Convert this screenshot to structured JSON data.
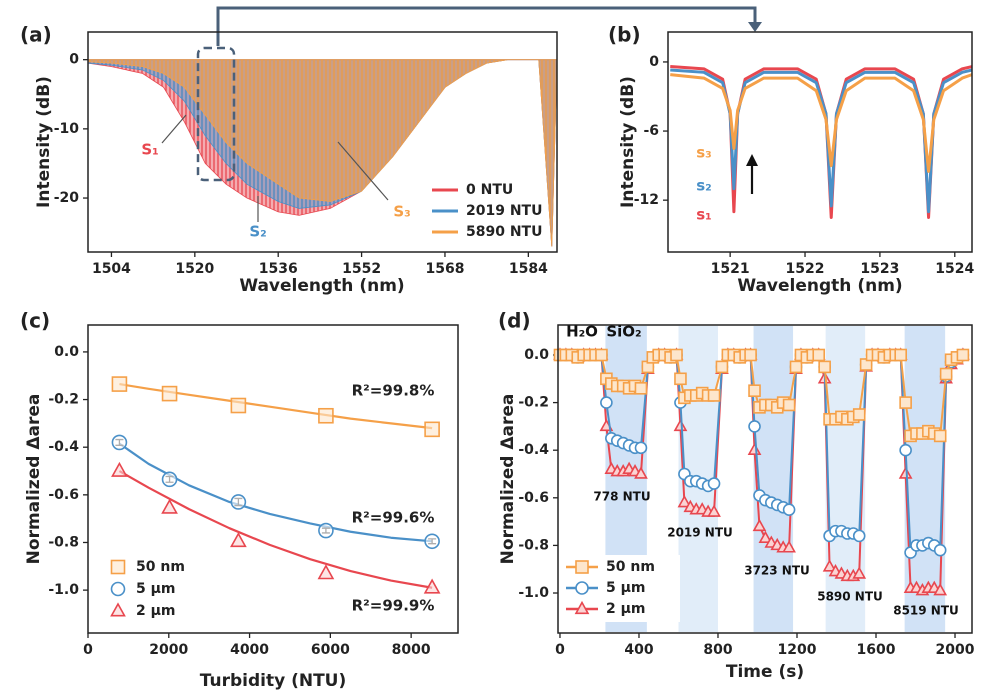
{
  "chart_data": [
    {
      "type": "area",
      "label": "(a)",
      "xlabel": "Wavelength (nm)",
      "ylabel": "Intensity (dB)",
      "xlim": [
        1499.5,
        1589.5
      ],
      "xticks": [
        1504,
        1520,
        1536,
        1552,
        1568,
        1584
      ],
      "ylim": [
        -27.8,
        4
      ],
      "yticks": [
        0,
        -10,
        -20
      ],
      "legend": "lower right",
      "x": [
        1499.5,
        1504,
        1510,
        1514,
        1518,
        1522,
        1526,
        1530,
        1536,
        1540,
        1546,
        1552,
        1558,
        1564,
        1568,
        1572,
        1576,
        1580,
        1586,
        1588.5,
        1589.5
      ],
      "series": [
        {
          "name": "0 NTU",
          "color": "#e8474f",
          "values": [
            -0.5,
            -1,
            -2,
            -4,
            -9,
            -15,
            -18,
            -20,
            -22,
            -22.5,
            -21.5,
            -19,
            -14,
            -8,
            -4,
            -2,
            -0.5,
            0,
            0,
            -27,
            0
          ]
        },
        {
          "name": "2019 NTU",
          "color": "#4a90c8",
          "values": [
            -0.5,
            -0.8,
            -1.5,
            -3,
            -6,
            -11,
            -15,
            -18,
            -20.5,
            -21.5,
            -21,
            -19,
            -14,
            -8,
            -4,
            -2,
            -0.5,
            0,
            0,
            -27,
            0
          ]
        },
        {
          "name": "5890 NTU",
          "color": "#f5a048",
          "values": [
            -0.3,
            -0.5,
            -1,
            -2,
            -4,
            -8,
            -12,
            -15,
            -18,
            -20,
            -20.5,
            -19,
            -14,
            -8,
            -4,
            -2,
            -0.5,
            0,
            0,
            -27,
            0
          ]
        }
      ],
      "annotations": [
        {
          "text": "S₁",
          "color": "#e8474f"
        },
        {
          "text": "S₂",
          "color": "#4a90c8"
        },
        {
          "text": "S₃",
          "color": "#f5a048"
        }
      ]
    },
    {
      "type": "line",
      "label": "(b)",
      "xlabel": "Wavelength (nm)",
      "ylabel": "Intensity (dB)",
      "xlim": [
        1520.17,
        1524.23
      ],
      "xticks": [
        1521,
        1522,
        1523,
        1524
      ],
      "ylim": [
        -16.5,
        2.6
      ],
      "yticks": [
        0,
        -6,
        -12
      ],
      "x": [
        1520.2,
        1520.65,
        1520.9,
        1521.0,
        1521.05,
        1521.1,
        1521.2,
        1521.45,
        1521.9,
        1522.15,
        1522.28,
        1522.35,
        1522.42,
        1522.55,
        1522.8,
        1523.2,
        1523.45,
        1523.58,
        1523.65,
        1523.72,
        1523.85,
        1524.1,
        1524.23
      ],
      "series": [
        {
          "color": "#e8474f",
          "values": [
            -0.4,
            -0.6,
            -1.5,
            -4.5,
            -13,
            -4.5,
            -1.5,
            -0.6,
            -0.6,
            -1.5,
            -4.5,
            -13.5,
            -4.5,
            -1.5,
            -0.6,
            -0.6,
            -1.5,
            -4.5,
            -13.5,
            -4.5,
            -1.5,
            -0.6,
            -0.4
          ]
        },
        {
          "color": "#4a90c8",
          "values": [
            -0.7,
            -0.9,
            -1.8,
            -4.5,
            -11,
            -4.5,
            -1.8,
            -0.9,
            -0.9,
            -1.8,
            -4.5,
            -12.5,
            -4.5,
            -1.8,
            -0.9,
            -0.9,
            -1.8,
            -4.5,
            -13,
            -4.5,
            -1.8,
            -0.9,
            -0.7
          ]
        },
        {
          "color": "#f5a048",
          "values": [
            -1.1,
            -1.4,
            -2.3,
            -4.2,
            -7.5,
            -4.2,
            -2.3,
            -1.4,
            -1.4,
            -2.5,
            -5,
            -9,
            -5,
            -2.5,
            -1.4,
            -1.4,
            -2.5,
            -5,
            -9.5,
            -5,
            -2.5,
            -1.4,
            -1.1
          ]
        }
      ],
      "annotations": [
        {
          "text": "s₃",
          "color": "#f5a048"
        },
        {
          "text": "s₂",
          "color": "#4a90c8"
        },
        {
          "text": "s₁",
          "color": "#e8474f"
        }
      ]
    },
    {
      "type": "scatter",
      "label": "(c)",
      "xlabel": "Turbidity (NTU)",
      "ylabel": "Normalized Δarea",
      "xlim": [
        0,
        9160
      ],
      "xticks": [
        0,
        2000,
        4000,
        6000,
        8000
      ],
      "ylim": [
        -1.18,
        0.113
      ],
      "yticks": [
        {
          "value": 0,
          "label": "0.0"
        },
        -0.2,
        -0.4,
        -0.6,
        -0.8,
        {
          "value": -1,
          "label": "-1.0"
        }
      ],
      "legend": "lower left",
      "x": [
        778,
        2019,
        3723,
        5890,
        8519
      ],
      "fit_x": [
        778,
        1500,
        2500,
        3500,
        4500,
        5500,
        6500,
        7500,
        8519
      ],
      "series": [
        {
          "name": "50 nm",
          "color": "#f5a048",
          "marker": "square",
          "values": [
            -0.135,
            -0.175,
            -0.225,
            -0.268,
            -0.325
          ],
          "fit": [
            -0.135,
            -0.155,
            -0.18,
            -0.205,
            -0.23,
            -0.255,
            -0.28,
            -0.3,
            -0.32
          ]
        },
        {
          "name": "5 µm",
          "color": "#4a90c8",
          "marker": "circle",
          "values": [
            -0.38,
            -0.535,
            -0.63,
            -0.75,
            -0.795
          ],
          "errors": [
            0.012,
            0.012,
            0.015,
            0.01,
            0.01
          ],
          "fit": [
            -0.385,
            -0.47,
            -0.56,
            -0.63,
            -0.68,
            -0.72,
            -0.755,
            -0.78,
            -0.795
          ]
        },
        {
          "name": "2 µm",
          "color": "#e8474f",
          "marker": "triangle",
          "values": [
            -0.5,
            -0.655,
            -0.795,
            -0.93,
            -0.99
          ],
          "fit": [
            -0.5,
            -0.57,
            -0.66,
            -0.74,
            -0.81,
            -0.87,
            -0.92,
            -0.96,
            -0.99
          ]
        }
      ],
      "annotations": [
        {
          "text": "R²=99.8%",
          "color": "#222222"
        },
        {
          "text": "R²=99.6%",
          "color": "#222222"
        },
        {
          "text": "R²=99.9%",
          "color": "#222222"
        }
      ]
    },
    {
      "type": "line",
      "label": "(d)",
      "xlabel": "Time (s)",
      "ylabel": "Normalized Δarea",
      "xlim": [
        -10,
        2086
      ],
      "xticks": [
        0,
        400,
        800,
        1200,
        1600,
        2000
      ],
      "ylim": [
        -1.168,
        0.126
      ],
      "yticks": [
        {
          "value": 0,
          "label": "0.0"
        },
        -0.2,
        -0.4,
        -0.6,
        -0.8,
        {
          "value": -1,
          "label": "-1.0"
        }
      ],
      "legend": "lower left",
      "markers": true,
      "bands": [
        [
          230,
          440
        ],
        [
          600,
          800
        ],
        [
          980,
          1180
        ],
        [
          1345,
          1545
        ],
        [
          1745,
          1950
        ]
      ],
      "x": [
        0,
        30,
        60,
        90,
        120,
        150,
        180,
        210,
        235,
        260,
        290,
        320,
        350,
        380,
        410,
        445,
        470,
        500,
        530,
        560,
        590,
        610,
        630,
        660,
        690,
        720,
        750,
        780,
        820,
        850,
        880,
        910,
        940,
        965,
        985,
        1010,
        1040,
        1070,
        1100,
        1130,
        1160,
        1195,
        1220,
        1250,
        1280,
        1310,
        1340,
        1365,
        1395,
        1425,
        1455,
        1485,
        1515,
        1550,
        1580,
        1610,
        1640,
        1670,
        1700,
        1725,
        1750,
        1775,
        1805,
        1835,
        1865,
        1895,
        1925,
        1955,
        1980,
        2010,
        2040
      ],
      "series": [
        {
          "name": "50 nm",
          "color": "#f5a048",
          "marker": "square",
          "values": [
            0,
            0,
            0,
            -0.01,
            0,
            0,
            0,
            0,
            -0.1,
            -0.12,
            -0.13,
            -0.13,
            -0.14,
            -0.13,
            -0.14,
            -0.05,
            -0.01,
            0,
            0,
            -0.01,
            0,
            -0.1,
            -0.18,
            -0.17,
            -0.17,
            -0.16,
            -0.17,
            -0.17,
            -0.05,
            0,
            0,
            -0.01,
            0,
            0,
            -0.15,
            -0.22,
            -0.21,
            -0.21,
            -0.22,
            -0.2,
            -0.21,
            -0.05,
            0,
            -0.01,
            0,
            0,
            -0.05,
            -0.27,
            -0.27,
            -0.26,
            -0.27,
            -0.26,
            -0.25,
            -0.04,
            0,
            0,
            -0.01,
            0,
            0,
            0,
            -0.2,
            -0.34,
            -0.33,
            -0.33,
            -0.32,
            -0.33,
            -0.34,
            -0.08,
            -0.02,
            -0.01,
            0
          ]
        },
        {
          "name": "5 µm",
          "color": "#4a90c8",
          "marker": "circle",
          "values": [
            0,
            0,
            0,
            -0.01,
            0,
            0,
            0,
            0,
            -0.2,
            -0.35,
            -0.36,
            -0.37,
            -0.38,
            -0.39,
            -0.39,
            -0.05,
            -0.01,
            0,
            0,
            -0.01,
            0,
            -0.2,
            -0.5,
            -0.53,
            -0.53,
            -0.54,
            -0.55,
            -0.54,
            -0.05,
            0,
            0,
            -0.01,
            0,
            0,
            -0.3,
            -0.59,
            -0.61,
            -0.62,
            -0.63,
            -0.64,
            -0.65,
            -0.05,
            0,
            -0.01,
            0,
            0,
            -0.05,
            -0.76,
            -0.74,
            -0.74,
            -0.75,
            -0.75,
            -0.76,
            -0.04,
            0,
            0,
            -0.01,
            0,
            0,
            0,
            -0.4,
            -0.83,
            -0.8,
            -0.8,
            -0.79,
            -0.8,
            -0.82,
            -0.09,
            -0.03,
            -0.01,
            0
          ]
        },
        {
          "name": "2 µm",
          "color": "#e8474f",
          "marker": "triangle",
          "values": [
            0,
            0,
            0,
            -0.01,
            0,
            0,
            0,
            0,
            -0.3,
            -0.48,
            -0.49,
            -0.49,
            -0.48,
            -0.49,
            -0.5,
            -0.06,
            -0.01,
            0,
            0,
            -0.01,
            0,
            -0.3,
            -0.62,
            -0.64,
            -0.65,
            -0.65,
            -0.66,
            -0.66,
            -0.06,
            0,
            0,
            -0.01,
            0,
            0,
            -0.4,
            -0.72,
            -0.77,
            -0.79,
            -0.8,
            -0.81,
            -0.81,
            -0.06,
            0,
            -0.01,
            0,
            0,
            -0.1,
            -0.89,
            -0.91,
            -0.92,
            -0.93,
            -0.93,
            -0.92,
            -0.05,
            0,
            0,
            -0.01,
            0,
            0,
            0,
            -0.5,
            -0.98,
            -0.98,
            -0.99,
            -0.98,
            -0.98,
            -0.99,
            -0.1,
            -0.04,
            -0.02,
            0
          ]
        }
      ],
      "annotations": [
        {
          "text": "H₂O",
          "color": "#111111"
        },
        {
          "text": "SiO₂",
          "color": "#111111"
        },
        {
          "text": "778 NTU",
          "color": "#111111"
        },
        {
          "text": "2019 NTU",
          "color": "#111111"
        },
        {
          "text": "3723 NTU",
          "color": "#111111"
        },
        {
          "text": "5890 NTU",
          "color": "#111111"
        },
        {
          "text": "8519 NTU",
          "color": "#111111"
        }
      ]
    }
  ]
}
